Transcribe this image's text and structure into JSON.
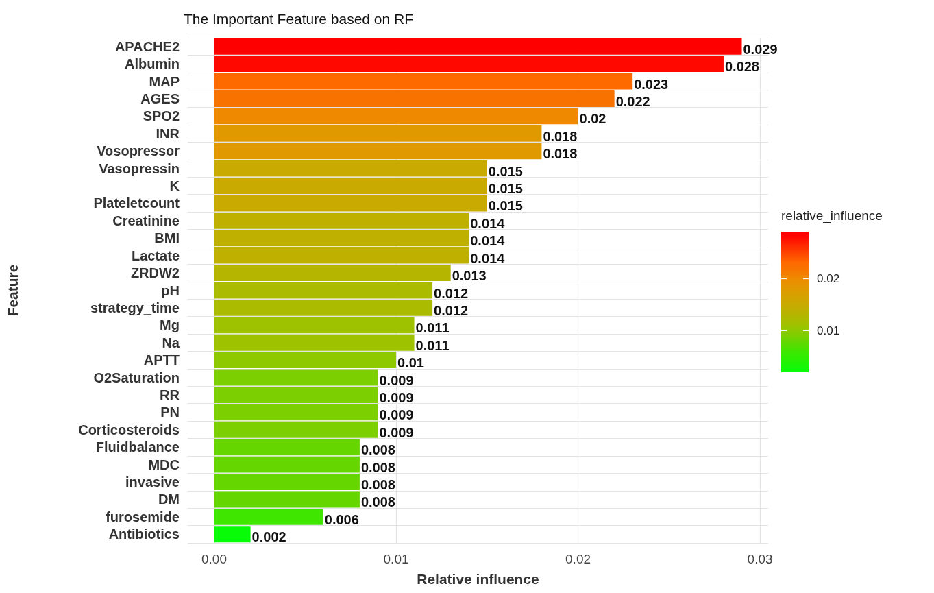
{
  "chart_data": {
    "type": "bar",
    "orientation": "horizontal",
    "title": "The Important Feature based on RF",
    "xlabel": "Relative influence",
    "ylabel": "Feature",
    "clabel": "relative_influence",
    "categories": [
      "APACHE2",
      "Albumin",
      "MAP",
      "AGES",
      "SPO2",
      "INR",
      "Vosopressor",
      "Vasopressin",
      "K",
      "Plateletcount",
      "Creatinine",
      "BMI",
      "Lactate",
      "ZRDW2",
      "pH",
      "strategy_time",
      "Mg",
      "Na",
      "APTT",
      "O2Saturation",
      "RR",
      "PN",
      "Corticosteroids",
      "Fluidbalance",
      "MDC",
      "invasive",
      "DM",
      "furosemide",
      "Antibiotics"
    ],
    "values": [
      0.029,
      0.028,
      0.023,
      0.022,
      0.02,
      0.018,
      0.018,
      0.015,
      0.015,
      0.015,
      0.014,
      0.014,
      0.014,
      0.013,
      0.012,
      0.012,
      0.011,
      0.011,
      0.01,
      0.009,
      0.009,
      0.009,
      0.009,
      0.008,
      0.008,
      0.008,
      0.008,
      0.006,
      0.002
    ],
    "colors": [
      "#ff0000",
      "#ff0800",
      "#ff6a00",
      "#f87200",
      "#ef8a00",
      "#e09a00",
      "#e09a00",
      "#c8aa00",
      "#c8aa00",
      "#c8aa00",
      "#bfb000",
      "#bfb000",
      "#bfb000",
      "#b5b500",
      "#aabb00",
      "#aabb00",
      "#9ec200",
      "#9ec200",
      "#8ec900",
      "#7ccf00",
      "#7ccf00",
      "#7ccf00",
      "#7ccf00",
      "#66d600",
      "#66d600",
      "#66d600",
      "#66d600",
      "#3ee600",
      "#08fc08"
    ],
    "xlim": [
      -0.00145,
      0.03045
    ],
    "xticks": [
      {
        "value": 0,
        "label": "0.00"
      },
      {
        "value": 0.01,
        "label": "0.01"
      },
      {
        "value": 0.02,
        "label": "0.02"
      },
      {
        "value": 0.03,
        "label": "0.03"
      }
    ],
    "clim": [
      0.002,
      0.029
    ],
    "cticks": [
      0.01,
      0.02
    ],
    "data_labels": true,
    "grid": true
  }
}
